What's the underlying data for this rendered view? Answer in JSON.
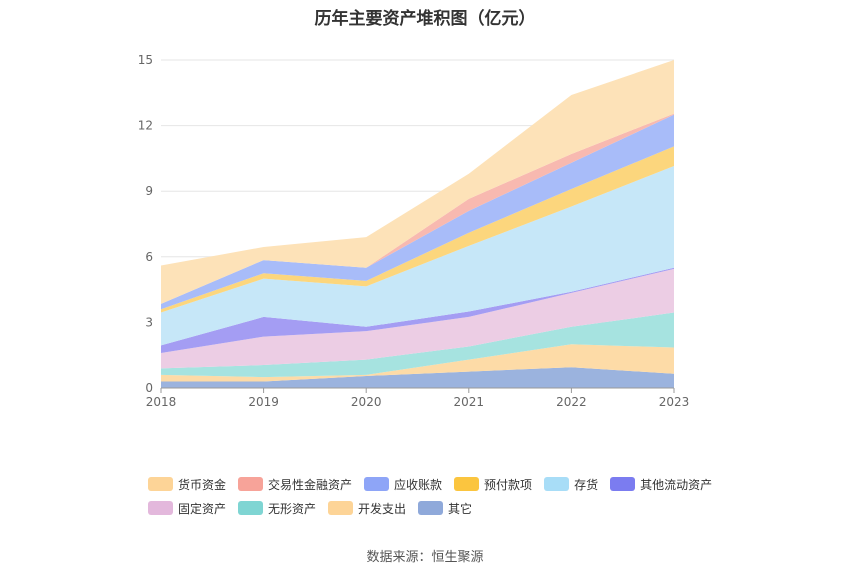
{
  "chart_data": {
    "type": "area",
    "stacked": true,
    "title": "历年主要资产堆积图（亿元）",
    "x": [
      "2018",
      "2019",
      "2020",
      "2021",
      "2022",
      "2023"
    ],
    "ylim": [
      0,
      15
    ],
    "yticks": [
      "0",
      "3",
      "6",
      "9",
      "12",
      "15"
    ],
    "grid": true,
    "legend_position": "bottom",
    "series": [
      {
        "name": "其它",
        "color": "#9bb3de",
        "values": [
          0.3,
          0.3,
          0.55,
          0.75,
          0.95,
          0.65
        ]
      },
      {
        "name": "开发支出",
        "color": "#fddba7",
        "values": [
          0.3,
          0.2,
          0.05,
          0.55,
          1.05,
          1.2
        ]
      },
      {
        "name": "无形资产",
        "color": "#a6e3e0",
        "values": [
          0.3,
          0.55,
          0.7,
          0.6,
          0.8,
          1.6
        ]
      },
      {
        "name": "固定资产",
        "color": "#eccde4",
        "values": [
          0.7,
          1.3,
          1.3,
          1.35,
          1.55,
          2.0
        ]
      },
      {
        "name": "其他流动资产",
        "color": "#a49df3",
        "values": [
          0.35,
          0.9,
          0.2,
          0.25,
          0.05,
          0.05
        ]
      },
      {
        "name": "存货",
        "color": "#c6e7f8",
        "values": [
          1.5,
          1.75,
          1.85,
          3.0,
          3.9,
          4.65
        ]
      },
      {
        "name": "预付款项",
        "color": "#fcd67d",
        "values": [
          0.15,
          0.25,
          0.25,
          0.6,
          0.8,
          0.9
        ]
      },
      {
        "name": "应收账款",
        "color": "#a8bcf9",
        "values": [
          0.25,
          0.6,
          0.6,
          1.0,
          1.2,
          1.45
        ]
      },
      {
        "name": "交易性金融资产",
        "color": "#f8b9b0",
        "values": [
          0.0,
          0.0,
          0.0,
          0.55,
          0.4,
          0.05
        ]
      },
      {
        "name": "货币资金",
        "color": "#fde2b8",
        "values": [
          1.75,
          0.6,
          1.4,
          1.15,
          2.7,
          2.45
        ]
      }
    ]
  },
  "legend": {
    "row1": [
      {
        "label": "货币资金",
        "color": "#fdd497"
      },
      {
        "label": "交易性金融资产",
        "color": "#f7a399"
      },
      {
        "label": "应收账款",
        "color": "#8ea5f7"
      },
      {
        "label": "预付款项",
        "color": "#fbc53f"
      },
      {
        "label": "存货",
        "color": "#a8ddf7"
      },
      {
        "label": "其他流动资产",
        "color": "#7b7cf0"
      }
    ],
    "row2": [
      {
        "label": "固定资产",
        "color": "#e3b8dc"
      },
      {
        "label": "无形资产",
        "color": "#7fd5d3"
      },
      {
        "label": "开发支出",
        "color": "#fdd497"
      },
      {
        "label": "其它",
        "color": "#8fa9da"
      }
    ]
  },
  "source": "数据来源：恒生聚源"
}
